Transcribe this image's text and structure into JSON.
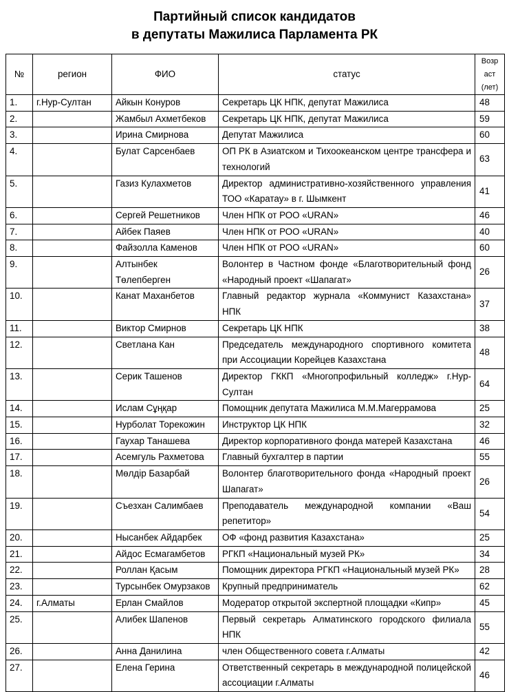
{
  "title_line1": "Партийный список кандидатов",
  "title_line2": "в депутаты Мажилиса Парламента РК",
  "columns": {
    "num": "№",
    "region": "регион",
    "name": "ФИО",
    "status": "статус",
    "age_l1": "Возр",
    "age_l2": "аст",
    "age_l3": "(лет)"
  },
  "rows": [
    {
      "num": "1.",
      "region": "г.Нур-Султан",
      "name": "Айкын Конуров",
      "status": "Секретарь ЦК НПК, депутат Мажилиса",
      "age": "48"
    },
    {
      "num": "2.",
      "region": "",
      "name": "Жамбыл Ахметбеков",
      "status": "Секретарь ЦК НПК, депутат Мажилиса",
      "age": "59"
    },
    {
      "num": "3.",
      "region": "",
      "name": "Ирина Смирнова",
      "status": "Депутат Мажилиса",
      "age": "60"
    },
    {
      "num": "4.",
      "region": "",
      "name": "Булат Сарсенбаев",
      "status": "ОП РК в Азиатском и Тихоокеанском центре трансфера и технологий",
      "age": "63"
    },
    {
      "num": "5.",
      "region": "",
      "name": "Газиз Кулахметов",
      "status": "Директор административно-хозяйственного управления ТОО «Каратау» в г. Шымкент",
      "age": "41"
    },
    {
      "num": "6.",
      "region": "",
      "name": "Сергей Решетников",
      "status": "Член НПК от РОО «URAN»",
      "age": "46"
    },
    {
      "num": "7.",
      "region": "",
      "name": "Айбек Паяев",
      "status": "Член НПК от РОО «URAN»",
      "age": "40"
    },
    {
      "num": "8.",
      "region": "",
      "name": "Файзолла Каменов",
      "status": "Член НПК от РОО «URAN»",
      "age": "60"
    },
    {
      "num": "9.",
      "region": "",
      "name": "Алтынбек Төлепберген",
      "status": "Волонтер в Частном фонде «Благотворительный фонд «Народный проект «Шапагат»",
      "age": "26"
    },
    {
      "num": "10.",
      "region": "",
      "name": "Канат Маханбетов",
      "status": "Главный редактор журнала «Коммунист Казахстана» НПК",
      "age": "37"
    },
    {
      "num": "11.",
      "region": "",
      "name": "Виктор Смирнов",
      "status": "Секретарь ЦК НПК",
      "age": "38"
    },
    {
      "num": "12.",
      "region": "",
      "name": "Светлана Кан",
      "status": "Председатель международного спортивного комитета при Ассоциации Корейцев Казахстана",
      "age": "48"
    },
    {
      "num": "13.",
      "region": "",
      "name": "Серик Ташенов",
      "status": "Директор ГККП «Многопрофильный колледж» г.Нур-Султан",
      "age": "64"
    },
    {
      "num": "14.",
      "region": "",
      "name": "Ислам Сұңқар",
      "status": "Помощник депутата Мажилиса М.М.Магеррамова",
      "age": "25"
    },
    {
      "num": "15.",
      "region": "",
      "name": "Нурболат Торекожин",
      "status": "Инструктор ЦК НПК",
      "age": "32"
    },
    {
      "num": "16.",
      "region": "",
      "name": "Гаухар Танашева",
      "status": "Директор корпоративного фонда матерей Казахстана",
      "age": "46"
    },
    {
      "num": "17.",
      "region": "",
      "name": "Асемгуль Рахметова",
      "status": "Главный бухгалтер в партии",
      "age": "55"
    },
    {
      "num": "18.",
      "region": "",
      "name": "Мөлдір Базарбай",
      "status": "Волонтер благотворительного фонда «Народный проект Шапагат»",
      "age": "26"
    },
    {
      "num": "19.",
      "region": "",
      "name": "Съезхан Салимбаев",
      "status": "Преподаватель международной компании «Ваш репетитор»",
      "age": "54"
    },
    {
      "num": "20.",
      "region": "",
      "name": "Нысанбек Айдарбек",
      "status": "ОФ «фонд развития Казахстана»",
      "age": "25"
    },
    {
      "num": "21.",
      "region": "",
      "name": "Айдос Есмагамбетов",
      "status": "РГКП «Национальный музей РК»",
      "age": "34"
    },
    {
      "num": "22.",
      "region": "",
      "name": "Роллан Қасым",
      "status": "Помощник директора РГКП «Национальный музей РК»",
      "age": "28"
    },
    {
      "num": "23.",
      "region": "",
      "name": "Турсынбек Омурзаков",
      "status": "Крупный предприниматель",
      "age": "62"
    },
    {
      "num": "24.",
      "region": "г.Алматы",
      "name": "Ерлан Смайлов",
      "status": "Модератор открытой экспертной площадки «Кипр»",
      "age": "45"
    },
    {
      "num": "25.",
      "region": "",
      "name": "Алибек Шапенов",
      "status": "Первый секретарь Алматинского городского филиала НПК",
      "age": "55"
    },
    {
      "num": "26.",
      "region": "",
      "name": "Анна Данилина",
      "status": "член Общественного совета г.Алматы",
      "age": "42"
    },
    {
      "num": "27.",
      "region": "",
      "name": "Елена Герина",
      "status": "Ответственный секретарь в международной полицейской ассоциации г.Алматы",
      "age": "46"
    }
  ]
}
